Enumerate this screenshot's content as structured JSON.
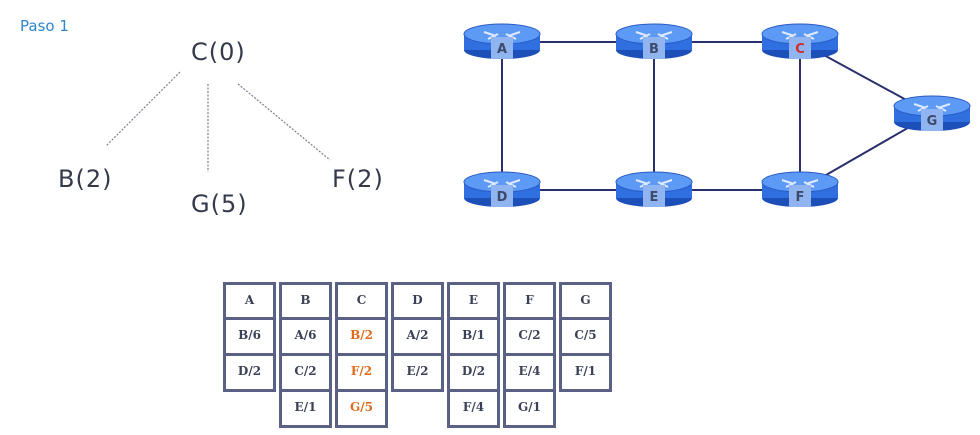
{
  "title": "Paso 1",
  "tree": {
    "root": "C(0)",
    "children": [
      "B(2)",
      "G(5)",
      "F(2)"
    ]
  },
  "network": {
    "routers": [
      {
        "id": "A",
        "label": "A",
        "highlight": false
      },
      {
        "id": "B",
        "label": "B",
        "highlight": false
      },
      {
        "id": "C",
        "label": "C",
        "highlight": true
      },
      {
        "id": "G",
        "label": "G",
        "highlight": false
      },
      {
        "id": "D",
        "label": "D",
        "highlight": false
      },
      {
        "id": "E",
        "label": "E",
        "highlight": false
      },
      {
        "id": "F",
        "label": "F",
        "highlight": false
      }
    ],
    "links": [
      [
        "A",
        "B"
      ],
      [
        "B",
        "C"
      ],
      [
        "C",
        "G"
      ],
      [
        "A",
        "D"
      ],
      [
        "B",
        "E"
      ],
      [
        "C",
        "F"
      ],
      [
        "D",
        "E"
      ],
      [
        "E",
        "F"
      ],
      [
        "F",
        "G"
      ]
    ],
    "colors": {
      "router_fill": "#2f6fe0",
      "router_top": "#5d9af5",
      "label_box": "#8fb4ef",
      "highlight_text": "#d42a2a",
      "label_text": "#3d4a6b",
      "link": "#2a2f6e"
    }
  },
  "table": {
    "columns": [
      {
        "header": "A",
        "entries": [
          {
            "text": "B/6",
            "hl": false
          },
          {
            "text": "D/2",
            "hl": false
          }
        ]
      },
      {
        "header": "B",
        "entries": [
          {
            "text": "A/6",
            "hl": false
          },
          {
            "text": "C/2",
            "hl": false
          },
          {
            "text": "E/1",
            "hl": false
          }
        ]
      },
      {
        "header": "C",
        "entries": [
          {
            "text": "B/2",
            "hl": true
          },
          {
            "text": "F/2",
            "hl": true
          },
          {
            "text": "G/5",
            "hl": true
          }
        ]
      },
      {
        "header": "D",
        "entries": [
          {
            "text": "A/2",
            "hl": false
          },
          {
            "text": "E/2",
            "hl": false
          }
        ]
      },
      {
        "header": "E",
        "entries": [
          {
            "text": "B/1",
            "hl": false
          },
          {
            "text": "D/2",
            "hl": false
          },
          {
            "text": "F/4",
            "hl": false
          }
        ]
      },
      {
        "header": "F",
        "entries": [
          {
            "text": "C/2",
            "hl": false
          },
          {
            "text": "E/4",
            "hl": false
          },
          {
            "text": "G/1",
            "hl": false
          }
        ]
      },
      {
        "header": "G",
        "entries": [
          {
            "text": "C/5",
            "hl": false
          },
          {
            "text": "F/1",
            "hl": false
          }
        ]
      }
    ],
    "colors": {
      "border": "#5a6185",
      "text": "#3a4056",
      "highlight": "#e06a1b"
    }
  }
}
